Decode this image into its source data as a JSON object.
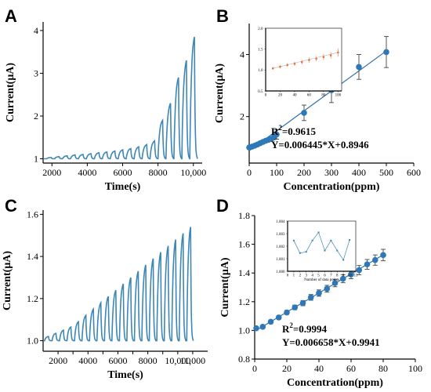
{
  "colors": {
    "trace": "#3d86b8",
    "fit": "#2f6fa8",
    "point": "#2f78b8",
    "inset_b": "#e8743b",
    "inset_b_line": "#b8b8b8"
  },
  "chart_data": [
    {
      "panel": "A",
      "type": "line",
      "xlabel": "Time(s)",
      "ylabel": "Current(μA)",
      "xlim": [
        1500,
        10500
      ],
      "ylim": [
        0.9,
        4.2
      ],
      "xticks": [
        2000,
        4000,
        6000,
        8000,
        10000
      ],
      "xtick_labels": [
        "2000",
        "4000",
        "6000",
        "8000",
        "10,000"
      ],
      "yticks": [
        1,
        2,
        3,
        4
      ],
      "baseline": 1.0,
      "peaks": [
        {
          "start": 1700,
          "peak": 1.03
        },
        {
          "start": 2150,
          "peak": 1.05
        },
        {
          "start": 2600,
          "peak": 1.07
        },
        {
          "start": 3050,
          "peak": 1.09
        },
        {
          "start": 3500,
          "peak": 1.1
        },
        {
          "start": 3950,
          "peak": 1.12
        },
        {
          "start": 4400,
          "peak": 1.14
        },
        {
          "start": 4850,
          "peak": 1.16
        },
        {
          "start": 5300,
          "peak": 1.18
        },
        {
          "start": 5750,
          "peak": 1.21
        },
        {
          "start": 6200,
          "peak": 1.24
        },
        {
          "start": 6650,
          "peak": 1.28
        },
        {
          "start": 7100,
          "peak": 1.33
        },
        {
          "start": 7550,
          "peak": 1.42
        },
        {
          "start": 8000,
          "peak": 1.9
        },
        {
          "start": 8450,
          "peak": 2.3
        },
        {
          "start": 8900,
          "peak": 2.9
        },
        {
          "start": 9350,
          "peak": 3.3
        },
        {
          "start": 9800,
          "peak": 3.85
        }
      ]
    },
    {
      "panel": "B",
      "type": "scatter",
      "xlabel": "Concentration(ppm)",
      "ylabel": "Current(μA)",
      "xlim": [
        0,
        600
      ],
      "ylim": [
        0.5,
        5
      ],
      "xticks": [
        0,
        100,
        200,
        300,
        400,
        500,
        600
      ],
      "yticks": [
        2,
        4
      ],
      "x": [
        0,
        10,
        20,
        30,
        40,
        50,
        60,
        70,
        80,
        90,
        100,
        200,
        300,
        400,
        500
      ],
      "y": [
        1.0,
        1.03,
        1.06,
        1.1,
        1.14,
        1.18,
        1.22,
        1.25,
        1.28,
        1.33,
        1.42,
        2.12,
        2.85,
        3.6,
        4.08
      ],
      "err": [
        0.03,
        0.03,
        0.04,
        0.04,
        0.04,
        0.05,
        0.05,
        0.05,
        0.06,
        0.07,
        0.15,
        0.25,
        0.4,
        0.4,
        0.5
      ],
      "fit": {
        "slope": 0.006445,
        "intercept": 0.8946
      },
      "r2_prefix": "R",
      "r2_sup": "2",
      "r2_value": "=0.9615",
      "equation": "Y=0.006445*X+0.8946",
      "inset": {
        "type": "line",
        "xlim": [
          0,
          105
        ],
        "ylim": [
          0.5,
          2.0
        ],
        "xticks": [
          0,
          20,
          40,
          60,
          80,
          100
        ],
        "yticks": [
          0.5,
          1.0,
          1.5,
          2.0
        ],
        "ytick_labels": [
          "0.5",
          "1.0",
          "1.5",
          "2.0"
        ],
        "x": [
          10,
          20,
          30,
          40,
          50,
          60,
          70,
          80,
          90,
          100
        ],
        "y": [
          1.04,
          1.08,
          1.12,
          1.15,
          1.19,
          1.24,
          1.27,
          1.31,
          1.35,
          1.42
        ],
        "err": [
          0.03,
          0.04,
          0.04,
          0.05,
          0.05,
          0.06,
          0.06,
          0.07,
          0.08,
          0.1
        ]
      }
    },
    {
      "panel": "C",
      "type": "line",
      "xlabel": "Time(s)",
      "ylabel": "Current(μA)",
      "xlim": [
        1000,
        12000
      ],
      "ylim": [
        0.95,
        1.62
      ],
      "xticks": [
        2000,
        3000,
        4000,
        5000,
        6000,
        7000,
        8000,
        9000,
        10000,
        11000
      ],
      "xtick_labels": [
        "2000",
        "",
        "4000",
        "",
        "6000",
        "",
        "8000",
        "",
        "10,000",
        "11,000"
      ],
      "yticks": [
        1.0,
        1.2,
        1.4,
        1.6
      ],
      "ytick_labels": [
        "1.0",
        "1.2",
        "1.4",
        "1.6"
      ],
      "baseline": 1.0,
      "peaks": [
        {
          "start": 1100,
          "peak": 1.02
        },
        {
          "start": 1600,
          "peak": 1.035
        },
        {
          "start": 2100,
          "peak": 1.05
        },
        {
          "start": 2600,
          "peak": 1.065
        },
        {
          "start": 3100,
          "peak": 1.09
        },
        {
          "start": 3600,
          "peak": 1.12
        },
        {
          "start": 4100,
          "peak": 1.15
        },
        {
          "start": 4600,
          "peak": 1.18
        },
        {
          "start": 5100,
          "peak": 1.21
        },
        {
          "start": 5600,
          "peak": 1.24
        },
        {
          "start": 6100,
          "peak": 1.27
        },
        {
          "start": 6600,
          "peak": 1.3
        },
        {
          "start": 7100,
          "peak": 1.33
        },
        {
          "start": 7600,
          "peak": 1.36
        },
        {
          "start": 8100,
          "peak": 1.39
        },
        {
          "start": 8600,
          "peak": 1.42
        },
        {
          "start": 9100,
          "peak": 1.45
        },
        {
          "start": 9600,
          "peak": 1.48
        },
        {
          "start": 10100,
          "peak": 1.51
        },
        {
          "start": 10600,
          "peak": 1.54
        }
      ]
    },
    {
      "panel": "D",
      "type": "scatter",
      "xlabel": "Concentration(ppm)",
      "ylabel": "Current(μA)",
      "xlim": [
        0,
        100
      ],
      "ylim": [
        0.8,
        1.8
      ],
      "xticks": [
        0,
        20,
        40,
        60,
        80,
        100
      ],
      "yticks": [
        0.8,
        1.0,
        1.2,
        1.4,
        1.6,
        1.8
      ],
      "ytick_labels": [
        "0.8",
        "1.0",
        "1.2",
        "1.4",
        "1.6",
        "1.8"
      ],
      "x": [
        1,
        5,
        10,
        15,
        20,
        25,
        30,
        35,
        40,
        45,
        50,
        55,
        60,
        65,
        70,
        75,
        80
      ],
      "y": [
        1.015,
        1.025,
        1.06,
        1.09,
        1.125,
        1.16,
        1.19,
        1.23,
        1.26,
        1.29,
        1.33,
        1.36,
        1.39,
        1.42,
        1.46,
        1.49,
        1.525
      ],
      "err": [
        0.005,
        0.008,
        0.01,
        0.012,
        0.014,
        0.016,
        0.018,
        0.02,
        0.022,
        0.024,
        0.026,
        0.028,
        0.03,
        0.032,
        0.034,
        0.036,
        0.04
      ],
      "fit": {
        "slope": 0.006658,
        "intercept": 0.9941
      },
      "r2_prefix": "R",
      "r2_sup": "2",
      "r2_value": "=0.9994",
      "equation": "Y=0.006658*X+0.9941",
      "inset": {
        "type": "line",
        "xlabel": "Number of data points",
        "xlim": [
          0,
          11
        ],
        "ylim": [
          1.0,
          1.004
        ],
        "xticks": [
          0,
          1,
          2,
          3,
          4,
          5,
          6,
          7,
          8,
          9,
          10,
          11
        ],
        "yticks": [
          1.0,
          1.001,
          1.002,
          1.003,
          1.004
        ],
        "ytick_labels": [
          "1.000",
          "1.001",
          "1.002",
          "1.003",
          "1.004"
        ],
        "x": [
          1,
          2,
          3,
          4,
          5,
          6,
          7,
          8,
          9,
          10
        ],
        "y": [
          1.00245,
          1.00145,
          1.00155,
          1.00245,
          1.0031,
          1.00165,
          1.00245,
          1.00165,
          1.0009,
          1.0025
        ]
      }
    }
  ],
  "labels": {
    "a": "A",
    "b": "B",
    "c": "C",
    "d": "D"
  }
}
